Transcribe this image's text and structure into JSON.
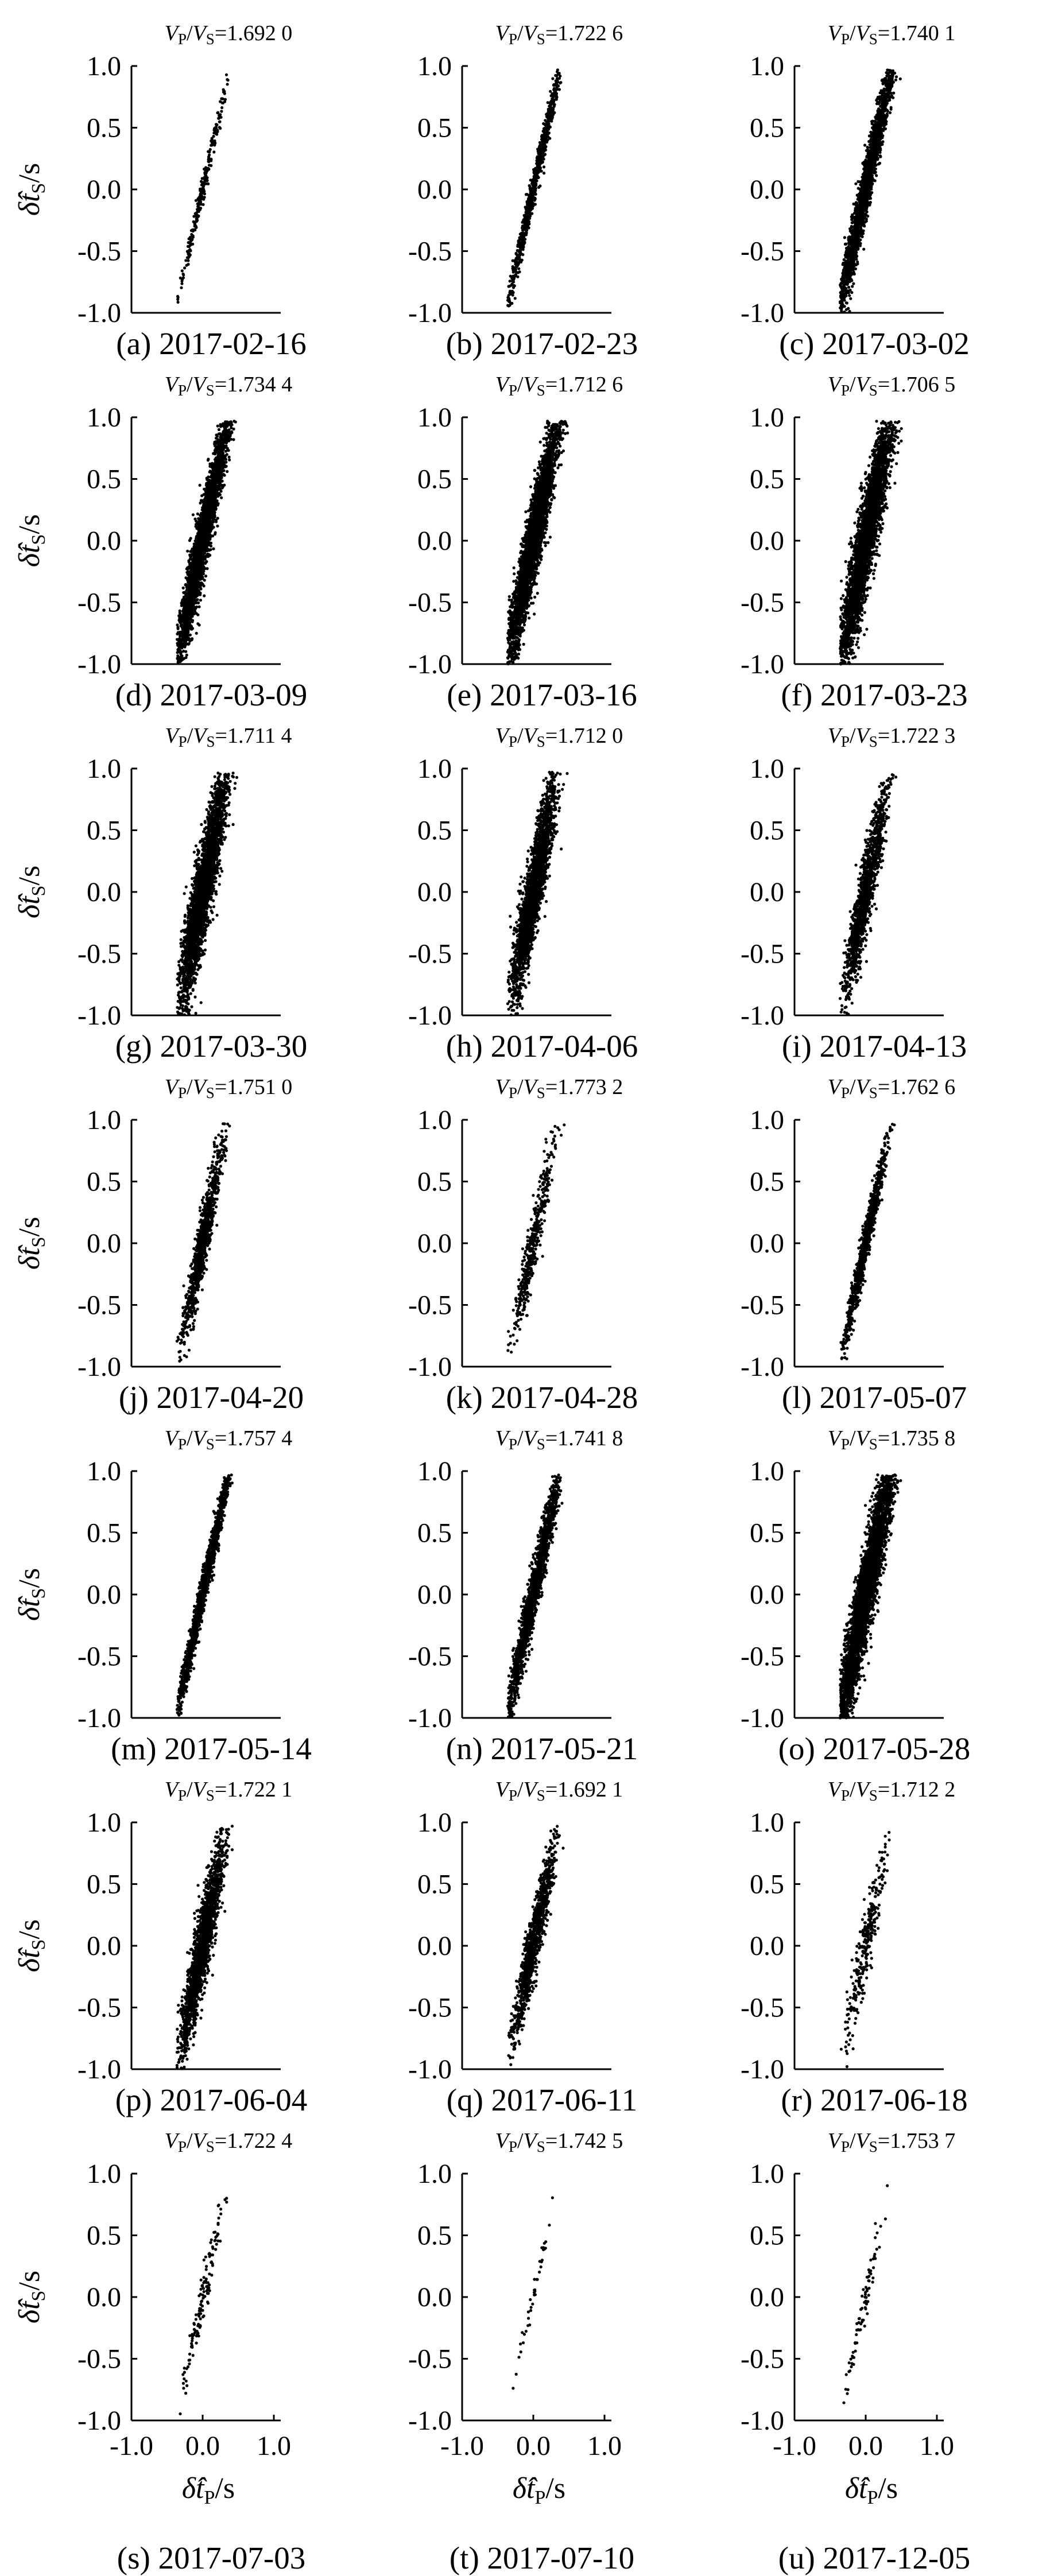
{
  "figure": {
    "ylabel": "δ̂tS/s",
    "xlabel": "δ̂tP/s",
    "title_prefix_top": "VP/VS="
  },
  "chart_data": [
    {
      "type": "scatter",
      "caption": "(a) 2017-02-16",
      "title": "VP/VS=1.692 0",
      "ratio": 1.692,
      "xlim": [
        -1.0,
        1.0
      ],
      "ylim": [
        -1.0,
        1.0
      ],
      "xticks": [
        -1.0,
        0.0,
        1.0
      ],
      "yticks": [
        -1.0,
        -0.5,
        0.0,
        0.5,
        1.0
      ],
      "density": 260,
      "x_spread": 0.17,
      "y_noise": 0.05
    },
    {
      "type": "scatter",
      "caption": "(b) 2017-02-23",
      "title": "VP/VS=1.722 6",
      "ratio": 1.7226,
      "xlim": [
        -1.0,
        1.0
      ],
      "ylim": [
        -1.0,
        1.0
      ],
      "xticks": [
        -1.0,
        0.0,
        1.0
      ],
      "yticks": [
        -1.0,
        -0.5,
        0.0,
        0.5,
        1.0
      ],
      "density": 900,
      "x_spread": 0.22,
      "y_noise": 0.07
    },
    {
      "type": "scatter",
      "caption": "(c) 2017-03-02",
      "title": "VP/VS=1.740 1",
      "ratio": 1.7401,
      "xlim": [
        -1.0,
        1.0
      ],
      "ylim": [
        -1.0,
        1.0
      ],
      "xticks": [
        -1.0,
        0.0,
        1.0
      ],
      "yticks": [
        -1.0,
        -0.5,
        0.0,
        0.5,
        1.0
      ],
      "density": 2400,
      "x_spread": 0.22,
      "y_noise": 0.12
    },
    {
      "type": "scatter",
      "caption": "(d) 2017-03-09",
      "title": "VP/VS=1.734 4",
      "ratio": 1.7344,
      "xlim": [
        -1.0,
        1.0
      ],
      "ylim": [
        -1.0,
        1.0
      ],
      "xticks": [
        -1.0,
        0.0,
        1.0
      ],
      "yticks": [
        -1.0,
        -0.5,
        0.0,
        0.5,
        1.0
      ],
      "density": 3200,
      "x_spread": 0.2,
      "y_noise": 0.15
    },
    {
      "type": "scatter",
      "caption": "(e) 2017-03-16",
      "title": "VP/VS=1.712 6",
      "ratio": 1.7126,
      "xlim": [
        -1.0,
        1.0
      ],
      "ylim": [
        -1.0,
        1.0
      ],
      "xticks": [
        -1.0,
        0.0,
        1.0
      ],
      "yticks": [
        -1.0,
        -0.5,
        0.0,
        0.5,
        1.0
      ],
      "density": 3400,
      "x_spread": 0.2,
      "y_noise": 0.17
    },
    {
      "type": "scatter",
      "caption": "(f) 2017-03-23",
      "title": "VP/VS=1.706 5",
      "ratio": 1.7065,
      "xlim": [
        -1.0,
        1.0
      ],
      "ylim": [
        -1.0,
        1.0
      ],
      "xticks": [
        -1.0,
        0.0,
        1.0
      ],
      "yticks": [
        -1.0,
        -0.5,
        0.0,
        0.5,
        1.0
      ],
      "density": 3600,
      "x_spread": 0.2,
      "y_noise": 0.2
    },
    {
      "type": "scatter",
      "caption": "(g) 2017-03-30",
      "title": "VP/VS=1.711 4",
      "ratio": 1.7114,
      "xlim": [
        -1.0,
        1.0
      ],
      "ylim": [
        -1.0,
        1.0
      ],
      "xticks": [
        -1.0,
        0.0,
        1.0
      ],
      "yticks": [
        -1.0,
        -0.5,
        0.0,
        0.5,
        1.0
      ],
      "density": 3000,
      "x_spread": 0.17,
      "y_noise": 0.2
    },
    {
      "type": "scatter",
      "caption": "(h) 2017-04-06",
      "title": "VP/VS=1.712 0",
      "ratio": 1.712,
      "xlim": [
        -1.0,
        1.0
      ],
      "ylim": [
        -1.0,
        1.0
      ],
      "xticks": [
        -1.0,
        0.0,
        1.0
      ],
      "yticks": [
        -1.0,
        -0.5,
        0.0,
        0.5,
        1.0
      ],
      "density": 2400,
      "x_spread": 0.16,
      "y_noise": 0.19
    },
    {
      "type": "scatter",
      "caption": "(i) 2017-04-13",
      "title": "VP/VS=1.722 3",
      "ratio": 1.7223,
      "xlim": [
        -1.0,
        1.0
      ],
      "ylim": [
        -1.0,
        1.0
      ],
      "xticks": [
        -1.0,
        0.0,
        1.0
      ],
      "yticks": [
        -1.0,
        -0.5,
        0.0,
        0.5,
        1.0
      ],
      "density": 1300,
      "x_spread": 0.15,
      "y_noise": 0.17
    },
    {
      "type": "scatter",
      "caption": "(j) 2017-04-20",
      "title": "VP/VS=1.751 0",
      "ratio": 1.751,
      "xlim": [
        -1.0,
        1.0
      ],
      "ylim": [
        -1.0,
        1.0
      ],
      "xticks": [
        -1.0,
        0.0,
        1.0
      ],
      "yticks": [
        -1.0,
        -0.5,
        0.0,
        0.5,
        1.0
      ],
      "density": 1000,
      "x_spread": 0.14,
      "y_noise": 0.13
    },
    {
      "type": "scatter",
      "caption": "(k) 2017-04-28",
      "title": "VP/VS=1.773 2",
      "ratio": 1.7732,
      "xlim": [
        -1.0,
        1.0
      ],
      "ylim": [
        -1.0,
        1.0
      ],
      "xticks": [
        -1.0,
        0.0,
        1.0
      ],
      "yticks": [
        -1.0,
        -0.5,
        0.0,
        0.5,
        1.0
      ],
      "density": 450,
      "x_spread": 0.14,
      "y_noise": 0.13
    },
    {
      "type": "scatter",
      "caption": "(l) 2017-05-07",
      "title": "VP/VS=1.762 6",
      "ratio": 1.7626,
      "xlim": [
        -1.0,
        1.0
      ],
      "ylim": [
        -1.0,
        1.0
      ],
      "xticks": [
        -1.0,
        0.0,
        1.0
      ],
      "yticks": [
        -1.0,
        -0.5,
        0.0,
        0.5,
        1.0
      ],
      "density": 1000,
      "x_spread": 0.15,
      "y_noise": 0.09
    },
    {
      "type": "scatter",
      "caption": "(m) 2017-05-14",
      "title": "VP/VS=1.757 4",
      "ratio": 1.7574,
      "xlim": [
        -1.0,
        1.0
      ],
      "ylim": [
        -1.0,
        1.0
      ],
      "xticks": [
        -1.0,
        0.0,
        1.0
      ],
      "yticks": [
        -1.0,
        -0.5,
        0.0,
        0.5,
        1.0
      ],
      "density": 1600,
      "x_spread": 0.22,
      "y_noise": 0.08
    },
    {
      "type": "scatter",
      "caption": "(n) 2017-05-21",
      "title": "VP/VS=1.741 8",
      "ratio": 1.7418,
      "xlim": [
        -1.0,
        1.0
      ],
      "ylim": [
        -1.0,
        1.0
      ],
      "xticks": [
        -1.0,
        0.0,
        1.0
      ],
      "yticks": [
        -1.0,
        -0.5,
        0.0,
        0.5,
        1.0
      ],
      "density": 1800,
      "x_spread": 0.2,
      "y_noise": 0.12
    },
    {
      "type": "scatter",
      "caption": "(o) 2017-05-28",
      "title": "VP/VS=1.735 8",
      "ratio": 1.7358,
      "xlim": [
        -1.0,
        1.0
      ],
      "ylim": [
        -1.0,
        1.0
      ],
      "xticks": [
        -1.0,
        0.0,
        1.0
      ],
      "yticks": [
        -1.0,
        -0.5,
        0.0,
        0.5,
        1.0
      ],
      "density": 4200,
      "x_spread": 0.22,
      "y_noise": 0.19
    },
    {
      "type": "scatter",
      "caption": "(p) 2017-06-04",
      "title": "VP/VS=1.722 1",
      "ratio": 1.7221,
      "xlim": [
        -1.0,
        1.0
      ],
      "ylim": [
        -1.0,
        1.0
      ],
      "xticks": [
        -1.0,
        0.0,
        1.0
      ],
      "yticks": [
        -1.0,
        -0.5,
        0.0,
        0.5,
        1.0
      ],
      "density": 1800,
      "x_spread": 0.16,
      "y_noise": 0.18
    },
    {
      "type": "scatter",
      "caption": "(q) 2017-06-11",
      "title": "VP/VS=1.692 1",
      "ratio": 1.6921,
      "xlim": [
        -1.0,
        1.0
      ],
      "ylim": [
        -1.0,
        1.0
      ],
      "xticks": [
        -1.0,
        0.0,
        1.0
      ],
      "yticks": [
        -1.0,
        -0.5,
        0.0,
        0.5,
        1.0
      ],
      "density": 1100,
      "x_spread": 0.15,
      "y_noise": 0.14
    },
    {
      "type": "scatter",
      "caption": "(r) 2017-06-18",
      "title": "VP/VS=1.712 2",
      "ratio": 1.7122,
      "xlim": [
        -1.0,
        1.0
      ],
      "ylim": [
        -1.0,
        1.0
      ],
      "xticks": [
        -1.0,
        0.0,
        1.0
      ],
      "yticks": [
        -1.0,
        -0.5,
        0.0,
        0.5,
        1.0
      ],
      "density": 300,
      "x_spread": 0.14,
      "y_noise": 0.14
    },
    {
      "type": "scatter",
      "caption": "(s) 2017-07-03",
      "title": "VP/VS=1.722 4",
      "ratio": 1.7224,
      "xlim": [
        -1.0,
        1.0
      ],
      "ylim": [
        -1.0,
        1.0
      ],
      "xticks": [
        -1.0,
        0.0,
        1.0
      ],
      "yticks": [
        -1.0,
        -0.5,
        0.0,
        0.5,
        1.0
      ],
      "density": 140,
      "x_spread": 0.15,
      "y_noise": 0.1
    },
    {
      "type": "scatter",
      "caption": "(t) 2017-07-10",
      "title": "VP/VS=1.742 5",
      "ratio": 1.7425,
      "xlim": [
        -1.0,
        1.0
      ],
      "ylim": [
        -1.0,
        1.0
      ],
      "xticks": [
        -1.0,
        0.0,
        1.0
      ],
      "yticks": [
        -1.0,
        -0.5,
        0.0,
        0.5,
        1.0
      ],
      "density": 40,
      "x_spread": 0.14,
      "y_noise": 0.05
    },
    {
      "type": "scatter",
      "caption": "(u) 2017-12-05",
      "title": "VP/VS=1.753 7",
      "ratio": 1.7537,
      "xlim": [
        -1.0,
        1.0
      ],
      "ylim": [
        -1.0,
        1.0
      ],
      "xticks": [
        -1.0,
        0.0,
        1.0
      ],
      "yticks": [
        -1.0,
        -0.5,
        0.0,
        0.5,
        1.0
      ],
      "density": 80,
      "x_spread": 0.15,
      "y_noise": 0.08
    }
  ]
}
